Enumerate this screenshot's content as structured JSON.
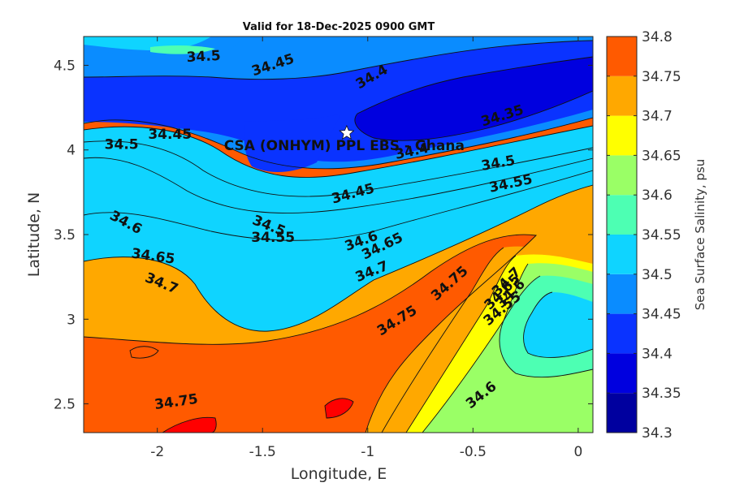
{
  "chart_data": {
    "type": "heatmap",
    "title": "Valid for 18-Dec-2025 0900 GMT",
    "xlabel": "Longitude, E",
    "ylabel": "Latitude, N",
    "xlim": [
      -2.35,
      0.07
    ],
    "ylim": [
      2.33,
      4.67
    ],
    "xticks": [
      -2,
      -1.5,
      -1,
      -0.5,
      0
    ],
    "xtick_labels": [
      "-2",
      "-1.5",
      "-1",
      "-0.5",
      "0"
    ],
    "yticks": [
      2.5,
      3,
      3.5,
      4,
      4.5
    ],
    "ytick_labels": [
      "2.5",
      "3",
      "3.5",
      "4",
      "4.5"
    ],
    "colorbar": {
      "label": "Sea Surface Salinity, psu",
      "levels": [
        34.3,
        34.35,
        34.4,
        34.45,
        34.5,
        34.55,
        34.6,
        34.65,
        34.7,
        34.75,
        34.8
      ],
      "tick_labels": [
        "34.3",
        "34.35",
        "34.4",
        "34.45",
        "34.5",
        "34.55",
        "34.6",
        "34.65",
        "34.7",
        "34.75",
        "34.8"
      ],
      "colors": [
        "#00009f",
        "#0000df",
        "#0a33ff",
        "#0a8cff",
        "#0fd4ff",
        "#4dffb3",
        "#9aff66",
        "#ffff00",
        "#ffa800",
        "#ff5a00",
        "#ff0000"
      ]
    },
    "bands": [
      {
        "range": [
          34.35,
          34.4
        ],
        "region": "deep low-salinity core north-east of the site"
      },
      {
        "range": [
          34.4,
          34.45
        ],
        "region": "northern band across the site"
      },
      {
        "range": [
          34.75,
          34.8
        ],
        "region": "south-central tongue toward the south-west corner"
      }
    ],
    "contour_labels": [
      {
        "text": "34.5",
        "lon": -1.78,
        "lat": 4.55,
        "angle": -3
      },
      {
        "text": "34.45",
        "lon": -1.45,
        "lat": 4.5,
        "angle": -18
      },
      {
        "text": "34.4",
        "lon": -0.98,
        "lat": 4.43,
        "angle": -30
      },
      {
        "text": "34.35",
        "lon": -0.36,
        "lat": 4.2,
        "angle": -17
      },
      {
        "text": "34.45",
        "lon": -1.94,
        "lat": 4.09,
        "angle": 0
      },
      {
        "text": "34.5",
        "lon": -2.17,
        "lat": 4.03,
        "angle": 0
      },
      {
        "text": "34.4",
        "lon": -0.79,
        "lat": 3.99,
        "angle": -12
      },
      {
        "text": "34.5",
        "lon": -0.38,
        "lat": 3.92,
        "angle": -10
      },
      {
        "text": "34.55",
        "lon": -0.32,
        "lat": 3.8,
        "angle": -12
      },
      {
        "text": "34.45",
        "lon": -1.07,
        "lat": 3.74,
        "angle": -15
      },
      {
        "text": "34.5",
        "lon": -1.47,
        "lat": 3.55,
        "angle": 22
      },
      {
        "text": "34.55",
        "lon": -1.45,
        "lat": 3.48,
        "angle": 0
      },
      {
        "text": "34.6",
        "lon": -1.03,
        "lat": 3.46,
        "angle": -20
      },
      {
        "text": "34.65",
        "lon": -0.93,
        "lat": 3.43,
        "angle": -26
      },
      {
        "text": "34.7",
        "lon": -0.98,
        "lat": 3.28,
        "angle": -22
      },
      {
        "text": "34.6",
        "lon": -2.15,
        "lat": 3.57,
        "angle": 28
      },
      {
        "text": "34.65",
        "lon": -2.02,
        "lat": 3.37,
        "angle": 8
      },
      {
        "text": "34.7",
        "lon": -1.98,
        "lat": 3.21,
        "angle": 22
      },
      {
        "text": "34.75",
        "lon": -0.61,
        "lat": 3.21,
        "angle": -42
      },
      {
        "text": "34.7",
        "lon": -0.34,
        "lat": 3.22,
        "angle": -45
      },
      {
        "text": "34.65",
        "lon": -0.36,
        "lat": 3.16,
        "angle": -45
      },
      {
        "text": "34.6",
        "lon": -0.32,
        "lat": 3.15,
        "angle": -45
      },
      {
        "text": "34.55",
        "lon": -0.36,
        "lat": 3.06,
        "angle": -40
      },
      {
        "text": "34.75",
        "lon": -0.86,
        "lat": 2.99,
        "angle": -32
      },
      {
        "text": "34.75",
        "lon": -1.91,
        "lat": 2.51,
        "angle": -8
      },
      {
        "text": "34.6",
        "lon": -0.46,
        "lat": 2.55,
        "angle": -38
      }
    ],
    "site": {
      "label": "CSA (ONHYM) PPL EBS  - Ghana",
      "lon": -1.1,
      "lat": 4.1,
      "marker": "white star"
    }
  }
}
